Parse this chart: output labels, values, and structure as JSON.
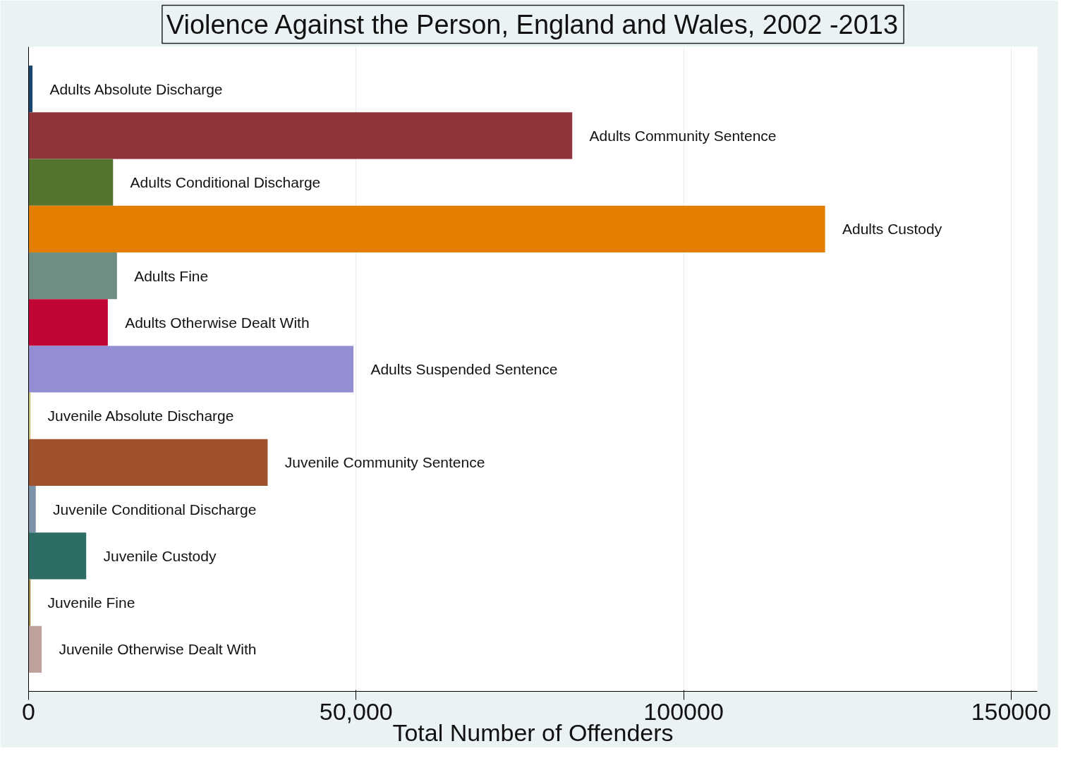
{
  "chart_data": {
    "type": "bar",
    "orientation": "horizontal",
    "title": "Violence Against the Person, England and Wales, 2002 -2013",
    "xlabel": "Total Number of Offenders",
    "categories": [
      "Adults Absolute Discharge",
      "Adults Community Sentence",
      "Adults Conditional Discharge",
      "Adults Custody",
      "Adults Fine",
      "Adults Otherwise Dealt With",
      "Adults Suspended Sentence",
      "Juvenile Absolute Discharge",
      "Juvenile Community Sentence",
      "Juvenile Conditional Discharge",
      "Juvenile Custody",
      "Juvenile Fine",
      "Juvenile Otherwise Dealt With"
    ],
    "values": [
      600,
      83000,
      12900,
      121600,
      13500,
      12100,
      49600,
      300,
      36500,
      1100,
      8800,
      300,
      2000
    ],
    "colors": [
      "#1a476f",
      "#90353b",
      "#55752f",
      "#e37e00",
      "#6e8e84",
      "#c10534",
      "#938dd2",
      "#cac27e",
      "#a0522d",
      "#7b92a8",
      "#2d6d66",
      "#9c8847",
      "#bfa19c"
    ],
    "xlim": [
      0,
      154000
    ],
    "xticks": [
      0,
      {
        "value": 50000,
        "label": "50,000"
      },
      100000,
      150000
    ],
    "grid": "x"
  }
}
